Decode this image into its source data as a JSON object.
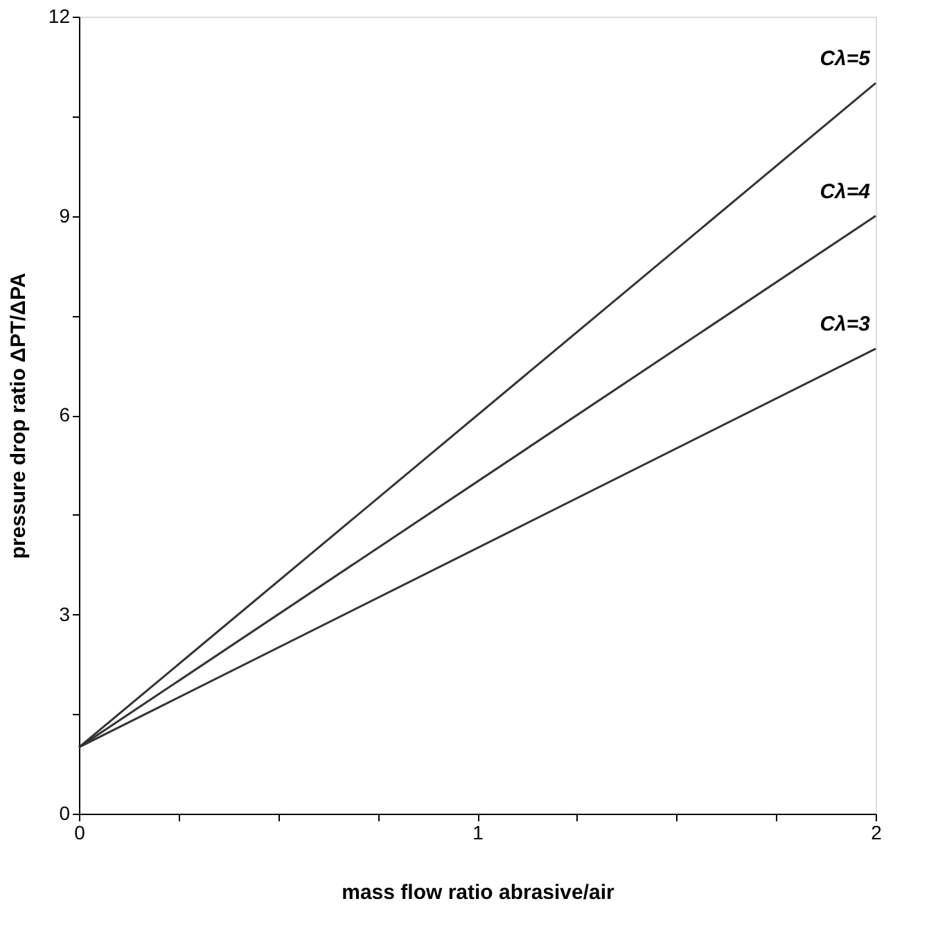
{
  "chart_data": {
    "type": "line",
    "x": [
      0,
      2
    ],
    "series": [
      {
        "name": "Cλ=5",
        "color": "#333333",
        "values": [
          1,
          11
        ]
      },
      {
        "name": "Cλ=4",
        "color": "#333333",
        "values": [
          1,
          9
        ]
      },
      {
        "name": "Cλ=3",
        "color": "#333333",
        "values": [
          1,
          7
        ]
      }
    ],
    "xlabel": "mass flow ratio abrasive/air",
    "ylabel": "pressure drop ratio ΔPT/ΔPA",
    "xlim": [
      0,
      2
    ],
    "xticks": [
      0,
      {
        "value": 0.25,
        "label": null
      },
      {
        "value": 0.5,
        "label": null
      },
      {
        "value": 0.75,
        "label": null
      },
      1,
      {
        "value": 1.25,
        "label": null
      },
      {
        "value": 1.5,
        "label": null
      },
      {
        "value": 1.75,
        "label": null
      },
      2
    ],
    "ylim": [
      0,
      12
    ],
    "yticks": [
      0,
      {
        "value": 1.5,
        "label": null
      },
      3,
      {
        "value": 4.5,
        "label": null
      },
      6,
      {
        "value": 7.5,
        "label": null
      },
      9,
      {
        "value": 10.5,
        "label": null
      },
      12
    ],
    "grid": false,
    "legend": false,
    "marker": "none",
    "line_style": "solid"
  }
}
